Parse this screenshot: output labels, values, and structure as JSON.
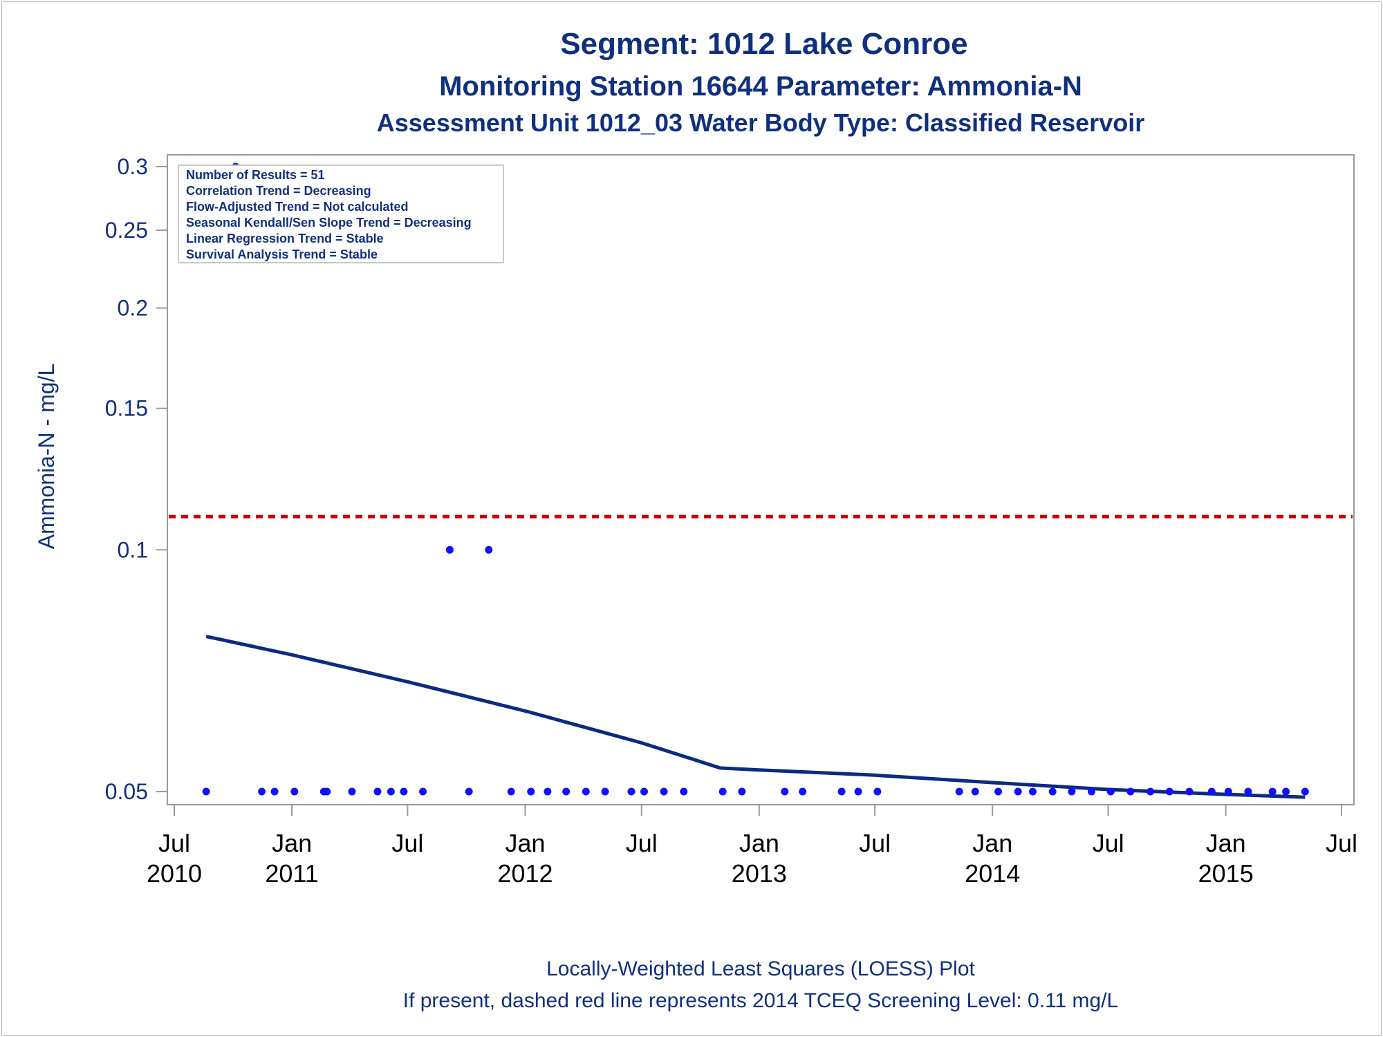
{
  "chart_data": {
    "type": "scatter",
    "title": "Segment: 1012  Lake Conroe",
    "subtitle1": "Monitoring Station 16644 Parameter: Ammonia-N",
    "subtitle2": "Assessment Unit 1012_03   Water Body Type: Classified Reservoir",
    "ylabel": "Ammonia-N - mg/L",
    "yscale": "log",
    "ylim": [
      0.048,
      0.3
    ],
    "xlim": [
      "2010-07-01",
      "2015-07-01"
    ],
    "yticks": [
      {
        "value": 0.05,
        "label": "0.05"
      },
      {
        "value": 0.1,
        "label": "0.1"
      },
      {
        "value": 0.15,
        "label": "0.15"
      },
      {
        "value": 0.2,
        "label": "0.2"
      },
      {
        "value": 0.25,
        "label": "0.25"
      },
      {
        "value": 0.3,
        "label": "0.3"
      }
    ],
    "xticks": [
      {
        "date": "2010-07-01",
        "line1": "Jul",
        "line2": "2010"
      },
      {
        "date": "2011-01-01",
        "line1": "Jan",
        "line2": "2011"
      },
      {
        "date": "2011-07-01",
        "line1": "Jul",
        "line2": ""
      },
      {
        "date": "2012-01-01",
        "line1": "Jan",
        "line2": "2012"
      },
      {
        "date": "2012-07-01",
        "line1": "Jul",
        "line2": ""
      },
      {
        "date": "2013-01-01",
        "line1": "Jan",
        "line2": "2013"
      },
      {
        "date": "2013-07-01",
        "line1": "Jul",
        "line2": ""
      },
      {
        "date": "2014-01-01",
        "line1": "Jan",
        "line2": "2014"
      },
      {
        "date": "2014-07-01",
        "line1": "Jul",
        "line2": ""
      },
      {
        "date": "2015-01-01",
        "line1": "Jan",
        "line2": "2015"
      },
      {
        "date": "2015-07-01",
        "line1": "Jul",
        "line2": ""
      }
    ],
    "points": [
      {
        "x": "2010-08-20",
        "y": 0.05
      },
      {
        "x": "2010-10-05",
        "y": 0.3
      },
      {
        "x": "2010-11-15",
        "y": 0.05
      },
      {
        "x": "2010-12-05",
        "y": 0.05
      },
      {
        "x": "2011-01-05",
        "y": 0.05
      },
      {
        "x": "2011-02-20",
        "y": 0.05
      },
      {
        "x": "2011-02-25",
        "y": 0.05
      },
      {
        "x": "2011-04-05",
        "y": 0.05
      },
      {
        "x": "2011-05-15",
        "y": 0.05
      },
      {
        "x": "2011-06-05",
        "y": 0.05
      },
      {
        "x": "2011-06-25",
        "y": 0.05
      },
      {
        "x": "2011-07-25",
        "y": 0.05
      },
      {
        "x": "2011-09-05",
        "y": 0.1
      },
      {
        "x": "2011-10-05",
        "y": 0.05
      },
      {
        "x": "2011-11-05",
        "y": 0.1
      },
      {
        "x": "2011-12-10",
        "y": 0.05
      },
      {
        "x": "2012-01-10",
        "y": 0.05
      },
      {
        "x": "2012-02-05",
        "y": 0.05
      },
      {
        "x": "2012-03-05",
        "y": 0.05
      },
      {
        "x": "2012-04-05",
        "y": 0.05
      },
      {
        "x": "2012-05-05",
        "y": 0.05
      },
      {
        "x": "2012-06-15",
        "y": 0.05
      },
      {
        "x": "2012-07-05",
        "y": 0.05
      },
      {
        "x": "2012-08-05",
        "y": 0.05
      },
      {
        "x": "2012-09-05",
        "y": 0.05
      },
      {
        "x": "2012-11-05",
        "y": 0.05
      },
      {
        "x": "2012-12-05",
        "y": 0.05
      },
      {
        "x": "2013-02-10",
        "y": 0.05
      },
      {
        "x": "2013-03-10",
        "y": 0.05
      },
      {
        "x": "2013-05-10",
        "y": 0.05
      },
      {
        "x": "2013-06-05",
        "y": 0.05
      },
      {
        "x": "2013-07-05",
        "y": 0.05
      },
      {
        "x": "2013-11-10",
        "y": 0.05
      },
      {
        "x": "2013-12-05",
        "y": 0.05
      },
      {
        "x": "2014-01-10",
        "y": 0.05
      },
      {
        "x": "2014-02-10",
        "y": 0.05
      },
      {
        "x": "2014-03-05",
        "y": 0.05
      },
      {
        "x": "2014-04-05",
        "y": 0.05
      },
      {
        "x": "2014-05-05",
        "y": 0.05
      },
      {
        "x": "2014-06-05",
        "y": 0.05
      },
      {
        "x": "2014-07-05",
        "y": 0.05
      },
      {
        "x": "2014-08-05",
        "y": 0.05
      },
      {
        "x": "2014-09-05",
        "y": 0.05
      },
      {
        "x": "2014-10-05",
        "y": 0.05
      },
      {
        "x": "2014-11-05",
        "y": 0.05
      },
      {
        "x": "2014-12-10",
        "y": 0.05
      },
      {
        "x": "2015-01-05",
        "y": 0.05
      },
      {
        "x": "2015-02-05",
        "y": 0.05
      },
      {
        "x": "2015-03-15",
        "y": 0.05
      },
      {
        "x": "2015-04-05",
        "y": 0.05
      },
      {
        "x": "2015-05-05",
        "y": 0.05
      }
    ],
    "loess": [
      {
        "x": "2010-08-20",
        "y": 0.078
      },
      {
        "x": "2011-01-01",
        "y": 0.074
      },
      {
        "x": "2011-07-01",
        "y": 0.0685
      },
      {
        "x": "2012-01-01",
        "y": 0.063
      },
      {
        "x": "2012-07-01",
        "y": 0.0575
      },
      {
        "x": "2012-11-01",
        "y": 0.0535
      },
      {
        "x": "2013-01-01",
        "y": 0.0532
      },
      {
        "x": "2013-07-01",
        "y": 0.0524
      },
      {
        "x": "2014-01-01",
        "y": 0.0513
      },
      {
        "x": "2014-07-01",
        "y": 0.0503
      },
      {
        "x": "2015-01-01",
        "y": 0.0496
      },
      {
        "x": "2015-05-05",
        "y": 0.0492
      }
    ],
    "reference_line": {
      "y": 0.11,
      "color": "#cc0000",
      "style": "dashed"
    },
    "stats_box": {
      "position": "top-left",
      "lines": [
        "Number of Results = 51",
        "Correlation Trend = Decreasing",
        "Flow-Adjusted Trend = Not calculated",
        "Seasonal Kendall/Sen Slope Trend = Decreasing",
        "Linear Regression Trend = Stable",
        "Survival Analysis Trend = Stable"
      ]
    },
    "footnotes": [
      "Locally-Weighted Least Squares (LOESS) Plot",
      "If present, dashed red line represents 2014 TCEQ Screening Level: 0.11 mg/L"
    ],
    "colors": {
      "text": "#10307e",
      "points": "#1010ff",
      "line": "#0c2a80",
      "reference": "#cc0000"
    }
  }
}
